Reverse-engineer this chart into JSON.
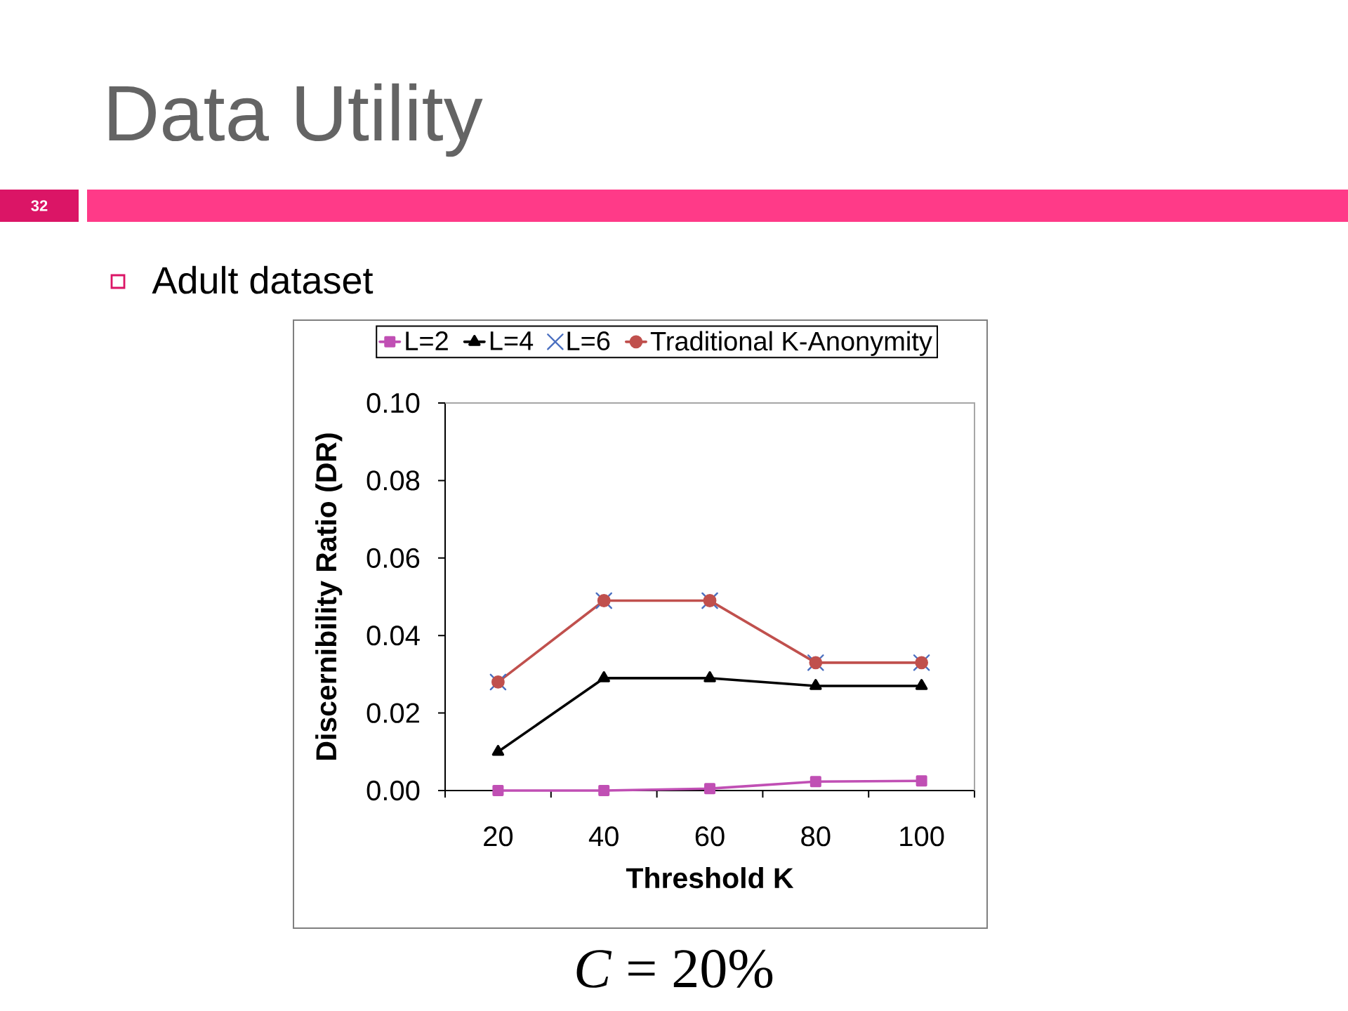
{
  "chart_data": {
    "type": "line",
    "title": "Data Utility",
    "subtitle": "Adult dataset",
    "xlabel": "Threshold K",
    "ylabel": "Discernibility Ratio (DR)",
    "categories": [
      "20",
      "40",
      "60",
      "80",
      "100"
    ],
    "series": [
      {
        "name": "L=2",
        "color": "#c04fb4",
        "marker": "square",
        "values": [
          0.0,
          0.0,
          0.0005,
          0.0023,
          0.0025
        ]
      },
      {
        "name": "L=4",
        "color": "#000000",
        "marker": "triangle",
        "values": [
          0.01,
          0.029,
          0.029,
          0.027,
          0.027
        ]
      },
      {
        "name": "L=6",
        "type": "scatter",
        "color": "#4a6fc0",
        "marker": "cross",
        "values": [
          0.028,
          0.049,
          0.049,
          0.033,
          0.033
        ]
      },
      {
        "name": "Traditional K-Anonymity",
        "color": "#c0504d",
        "marker": "circle",
        "values": [
          0.028,
          0.049,
          0.049,
          0.033,
          0.033
        ]
      }
    ],
    "ylim": [
      0,
      0.1
    ],
    "yticks": [
      {
        "value": 0,
        "label": "0.00"
      },
      {
        "value": 0.02,
        "label": "0.02"
      },
      {
        "value": 0.04,
        "label": "0.04"
      },
      {
        "value": 0.06,
        "label": "0.06"
      },
      {
        "value": 0.08,
        "label": "0.08"
      },
      {
        "value": 0.1,
        "label": "0.10"
      }
    ],
    "legend": "top",
    "annotations": [
      "*C* = 20%",
      "32"
    ]
  }
}
